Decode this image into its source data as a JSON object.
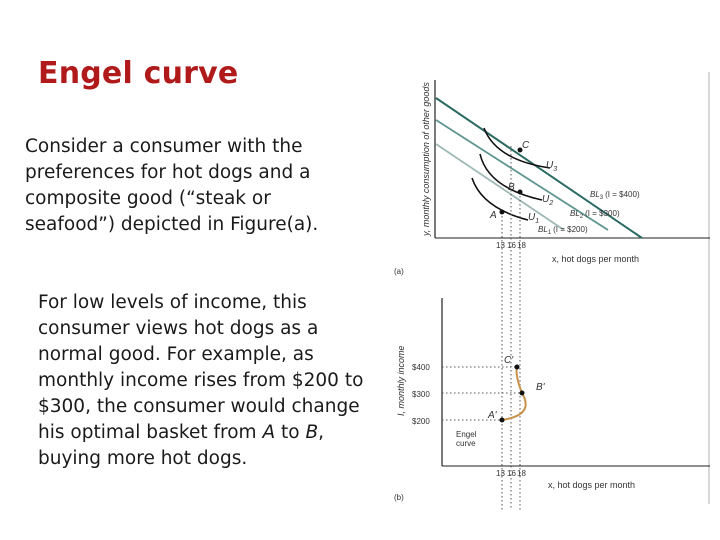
{
  "slide": {
    "title": "Engel curve",
    "para1_lines": [
      "Consider a consumer with the",
      "preferences for hot dogs and a",
      "composite good (“steak or",
      "seafood”) depicted in Figure(a)."
    ],
    "para2": {
      "lines_plain": [
        "For low levels of income, this",
        "consumer views hot dogs as a",
        "normal good. For example, as",
        "monthly income rises from $200 to"
      ],
      "line5_pre": "$300, the consumer would change",
      "line6_pre": "his optimal basket from ",
      "line6_a": "A",
      "line6_mid": " to ",
      "line6_b": "B",
      "line6_post": ",",
      "line7": "buying more hot dogs."
    }
  },
  "figure_a": {
    "panel_label": "(a)",
    "ylabel": "y, monthly consumption of other goods",
    "xlabel": "x, hot dogs per month",
    "x_ticks": [
      "13",
      "16",
      "18"
    ],
    "points": [
      "A",
      "B",
      "C"
    ],
    "indifference_labels": [
      "U",
      "1",
      "U",
      "2",
      "U",
      "3"
    ],
    "budget_lines": [
      {
        "name": "BL",
        "sub": "1",
        "income": "(I = $200)"
      },
      {
        "name": "BL",
        "sub": "2",
        "income": "(I = $300)"
      },
      {
        "name": "BL",
        "sub": "3",
        "income": "(I = $400)"
      }
    ]
  },
  "figure_b": {
    "panel_label": "(b)",
    "ylabel": "I, monthly income",
    "xlabel": "x, hot dogs per month",
    "x_ticks": [
      "13",
      "16",
      "18"
    ],
    "y_ticks": [
      "$400",
      "$300",
      "$200"
    ],
    "points": [
      "A'",
      "B'",
      "C'"
    ],
    "curve_label_1": "Engel",
    "curve_label_2": "curve",
    "engel_points": [
      {
        "x": 13,
        "income": 200
      },
      {
        "x": 18,
        "income": 300
      },
      {
        "x": 16,
        "income": 400
      }
    ]
  },
  "colors": {
    "title": "#b01a1a",
    "budget_line_1": "#9fb9b6",
    "budget_line_2": "#5f9590",
    "budget_line_3": "#2a6a63",
    "engel_curve": "#c9924a",
    "indifference": "#111111"
  }
}
